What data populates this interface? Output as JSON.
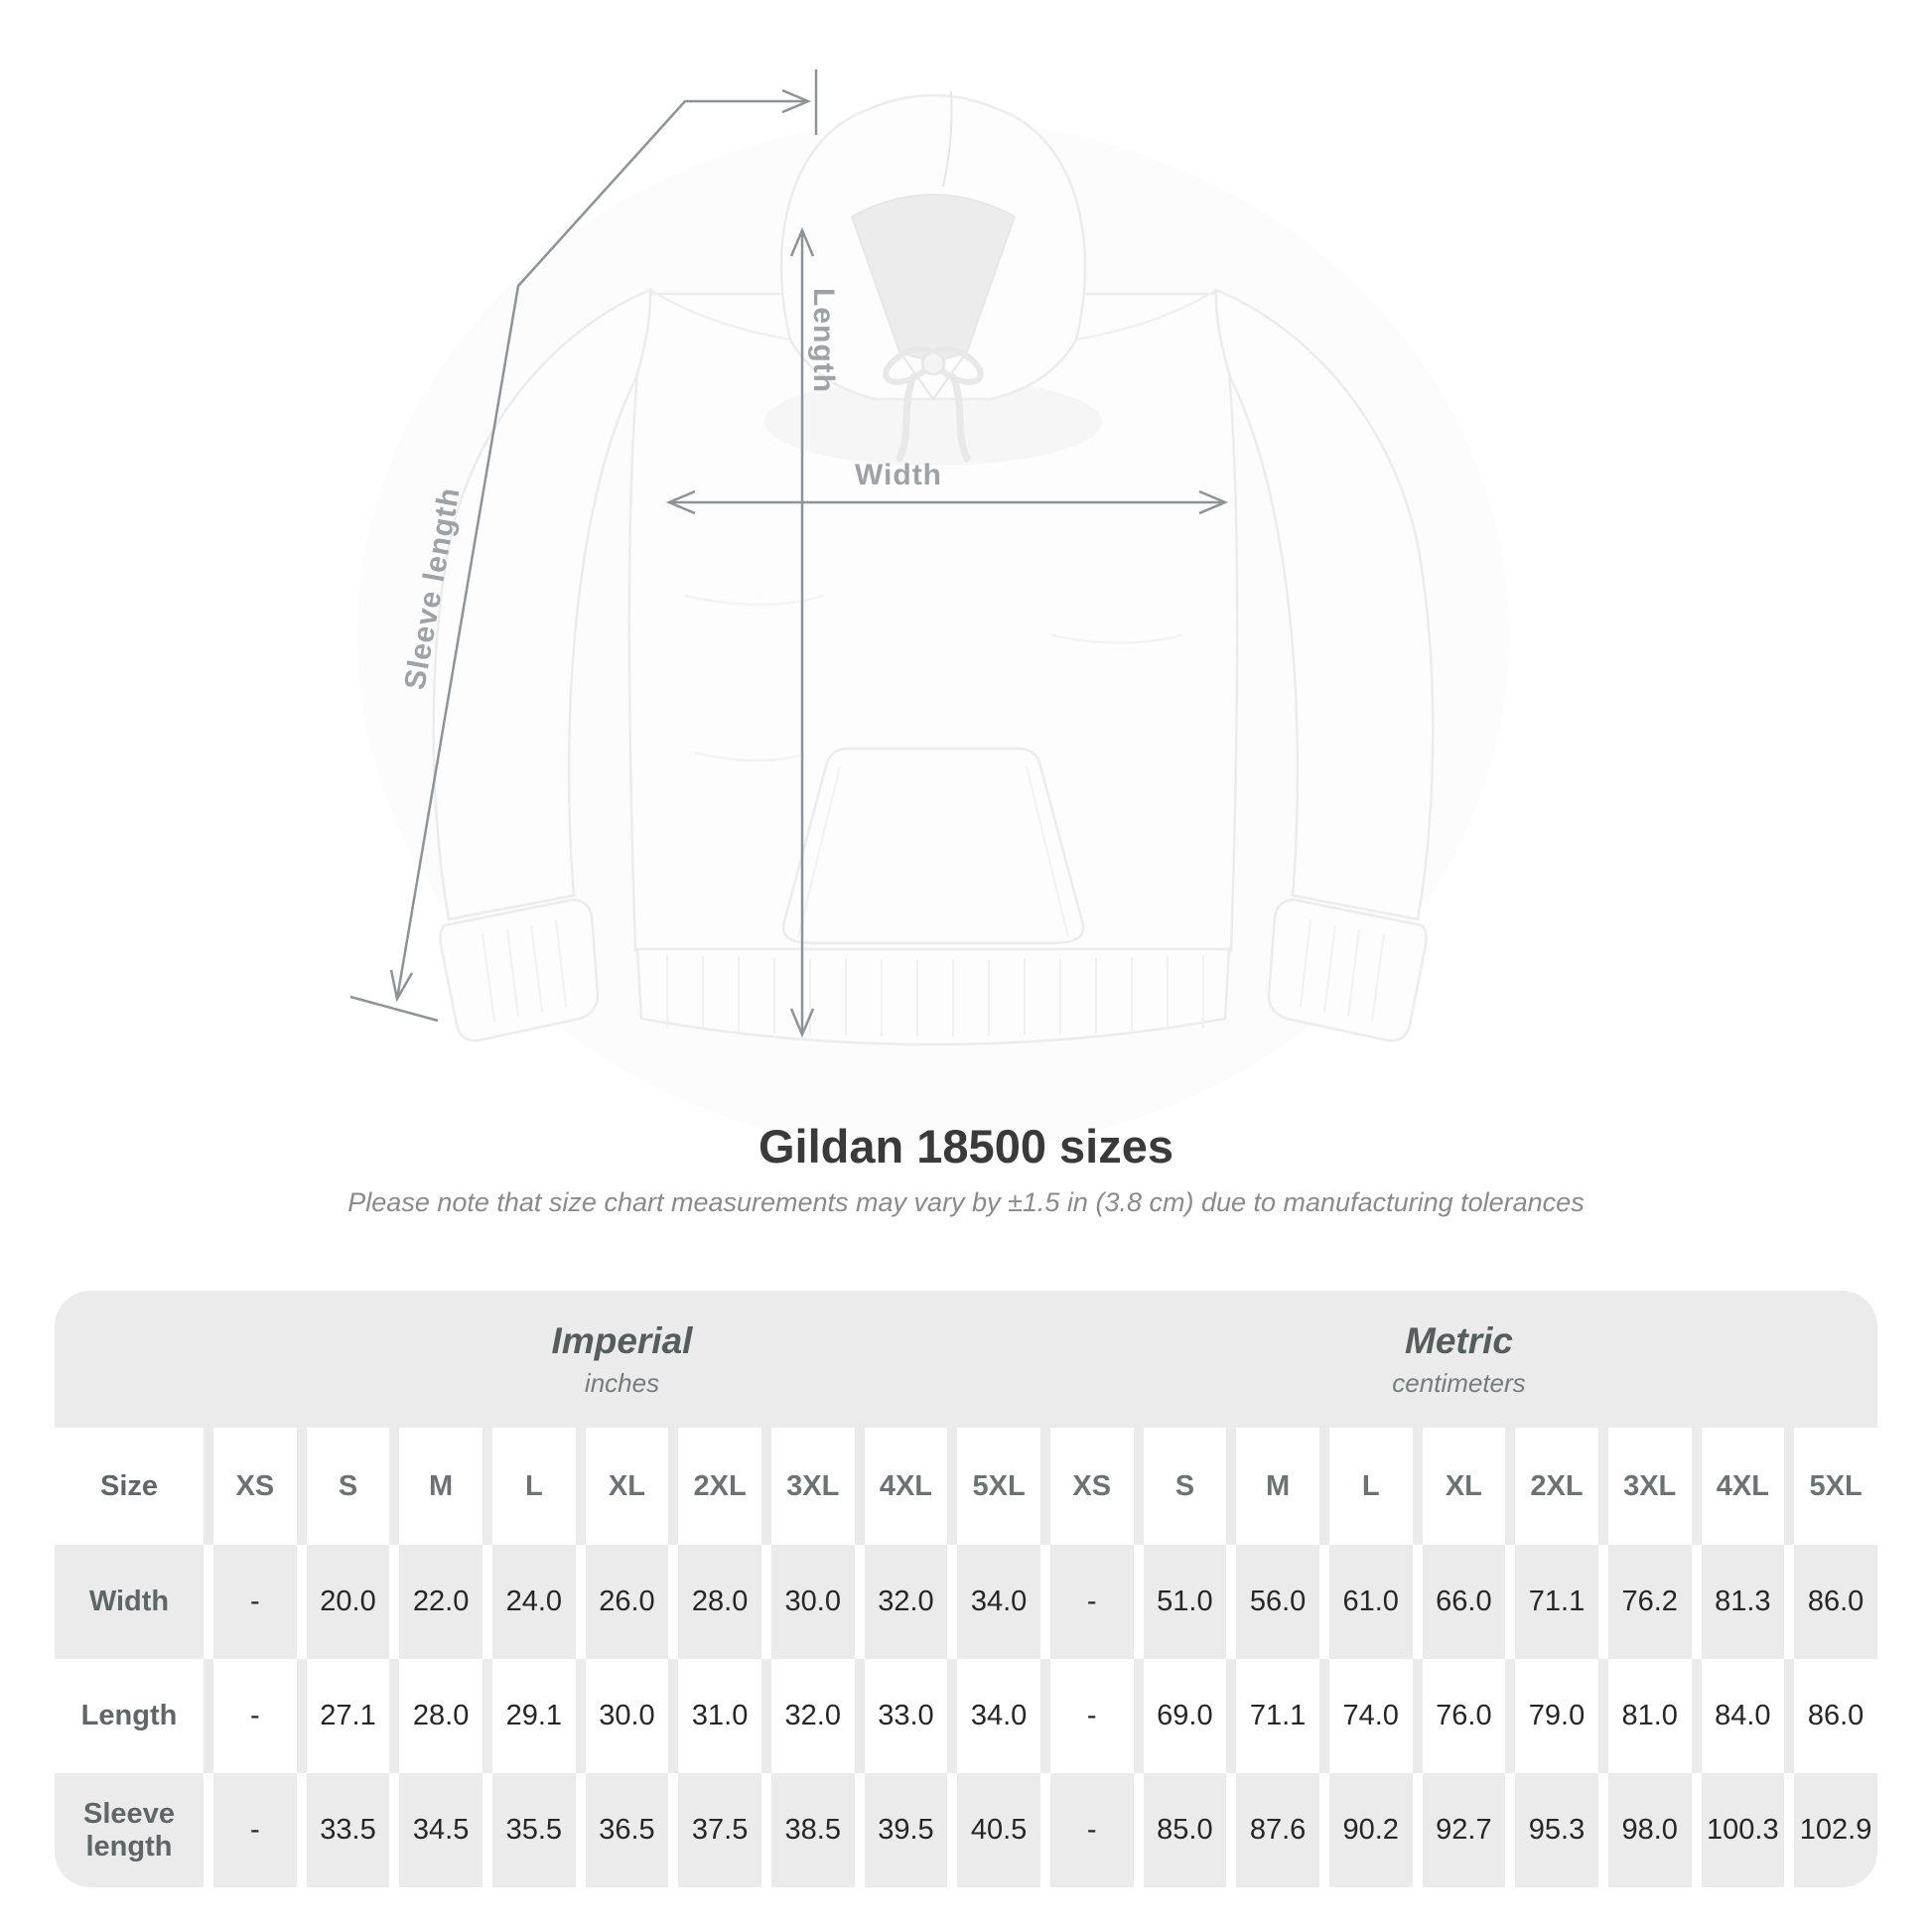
{
  "page": {
    "background": "#ffffff"
  },
  "diagram": {
    "sleeve_length_label": "Sleeve length",
    "length_label": "Length",
    "width_label": "Width",
    "line_color": "#8d9397",
    "label_color": "#9ca2a6"
  },
  "heading": {
    "title": "Gildan 18500 sizes",
    "subtitle": "Please note that size chart measurements may vary by ±1.5 in (3.8 cm) due to manufacturing tolerances"
  },
  "chart_data": {
    "type": "table",
    "title": "Gildan 18500 sizes",
    "corner_label": "Size",
    "sizes": [
      "XS",
      "S",
      "M",
      "L",
      "XL",
      "2XL",
      "3XL",
      "4XL",
      "5XL"
    ],
    "sections": [
      {
        "label": "Imperial",
        "unit": "inches"
      },
      {
        "label": "Metric",
        "unit": "centimeters"
      }
    ],
    "rows": [
      {
        "label": "Width",
        "imperial": [
          "-",
          "20.0",
          "22.0",
          "24.0",
          "26.0",
          "28.0",
          "30.0",
          "32.0",
          "34.0"
        ],
        "metric": [
          "-",
          "51.0",
          "56.0",
          "61.0",
          "66.0",
          "71.1",
          "76.2",
          "81.3",
          "86.0"
        ]
      },
      {
        "label": "Length",
        "imperial": [
          "-",
          "27.1",
          "28.0",
          "29.1",
          "30.0",
          "31.0",
          "32.0",
          "33.0",
          "34.0"
        ],
        "metric": [
          "-",
          "69.0",
          "71.1",
          "74.0",
          "76.0",
          "79.0",
          "81.0",
          "84.0",
          "86.0"
        ]
      },
      {
        "label": "Sleeve length",
        "imperial": [
          "-",
          "33.5",
          "34.5",
          "35.5",
          "36.5",
          "37.5",
          "38.5",
          "39.5",
          "40.5"
        ],
        "metric": [
          "-",
          "85.0",
          "87.6",
          "90.2",
          "92.7",
          "95.3",
          "98.0",
          "100.3",
          "102.9"
        ]
      }
    ]
  }
}
